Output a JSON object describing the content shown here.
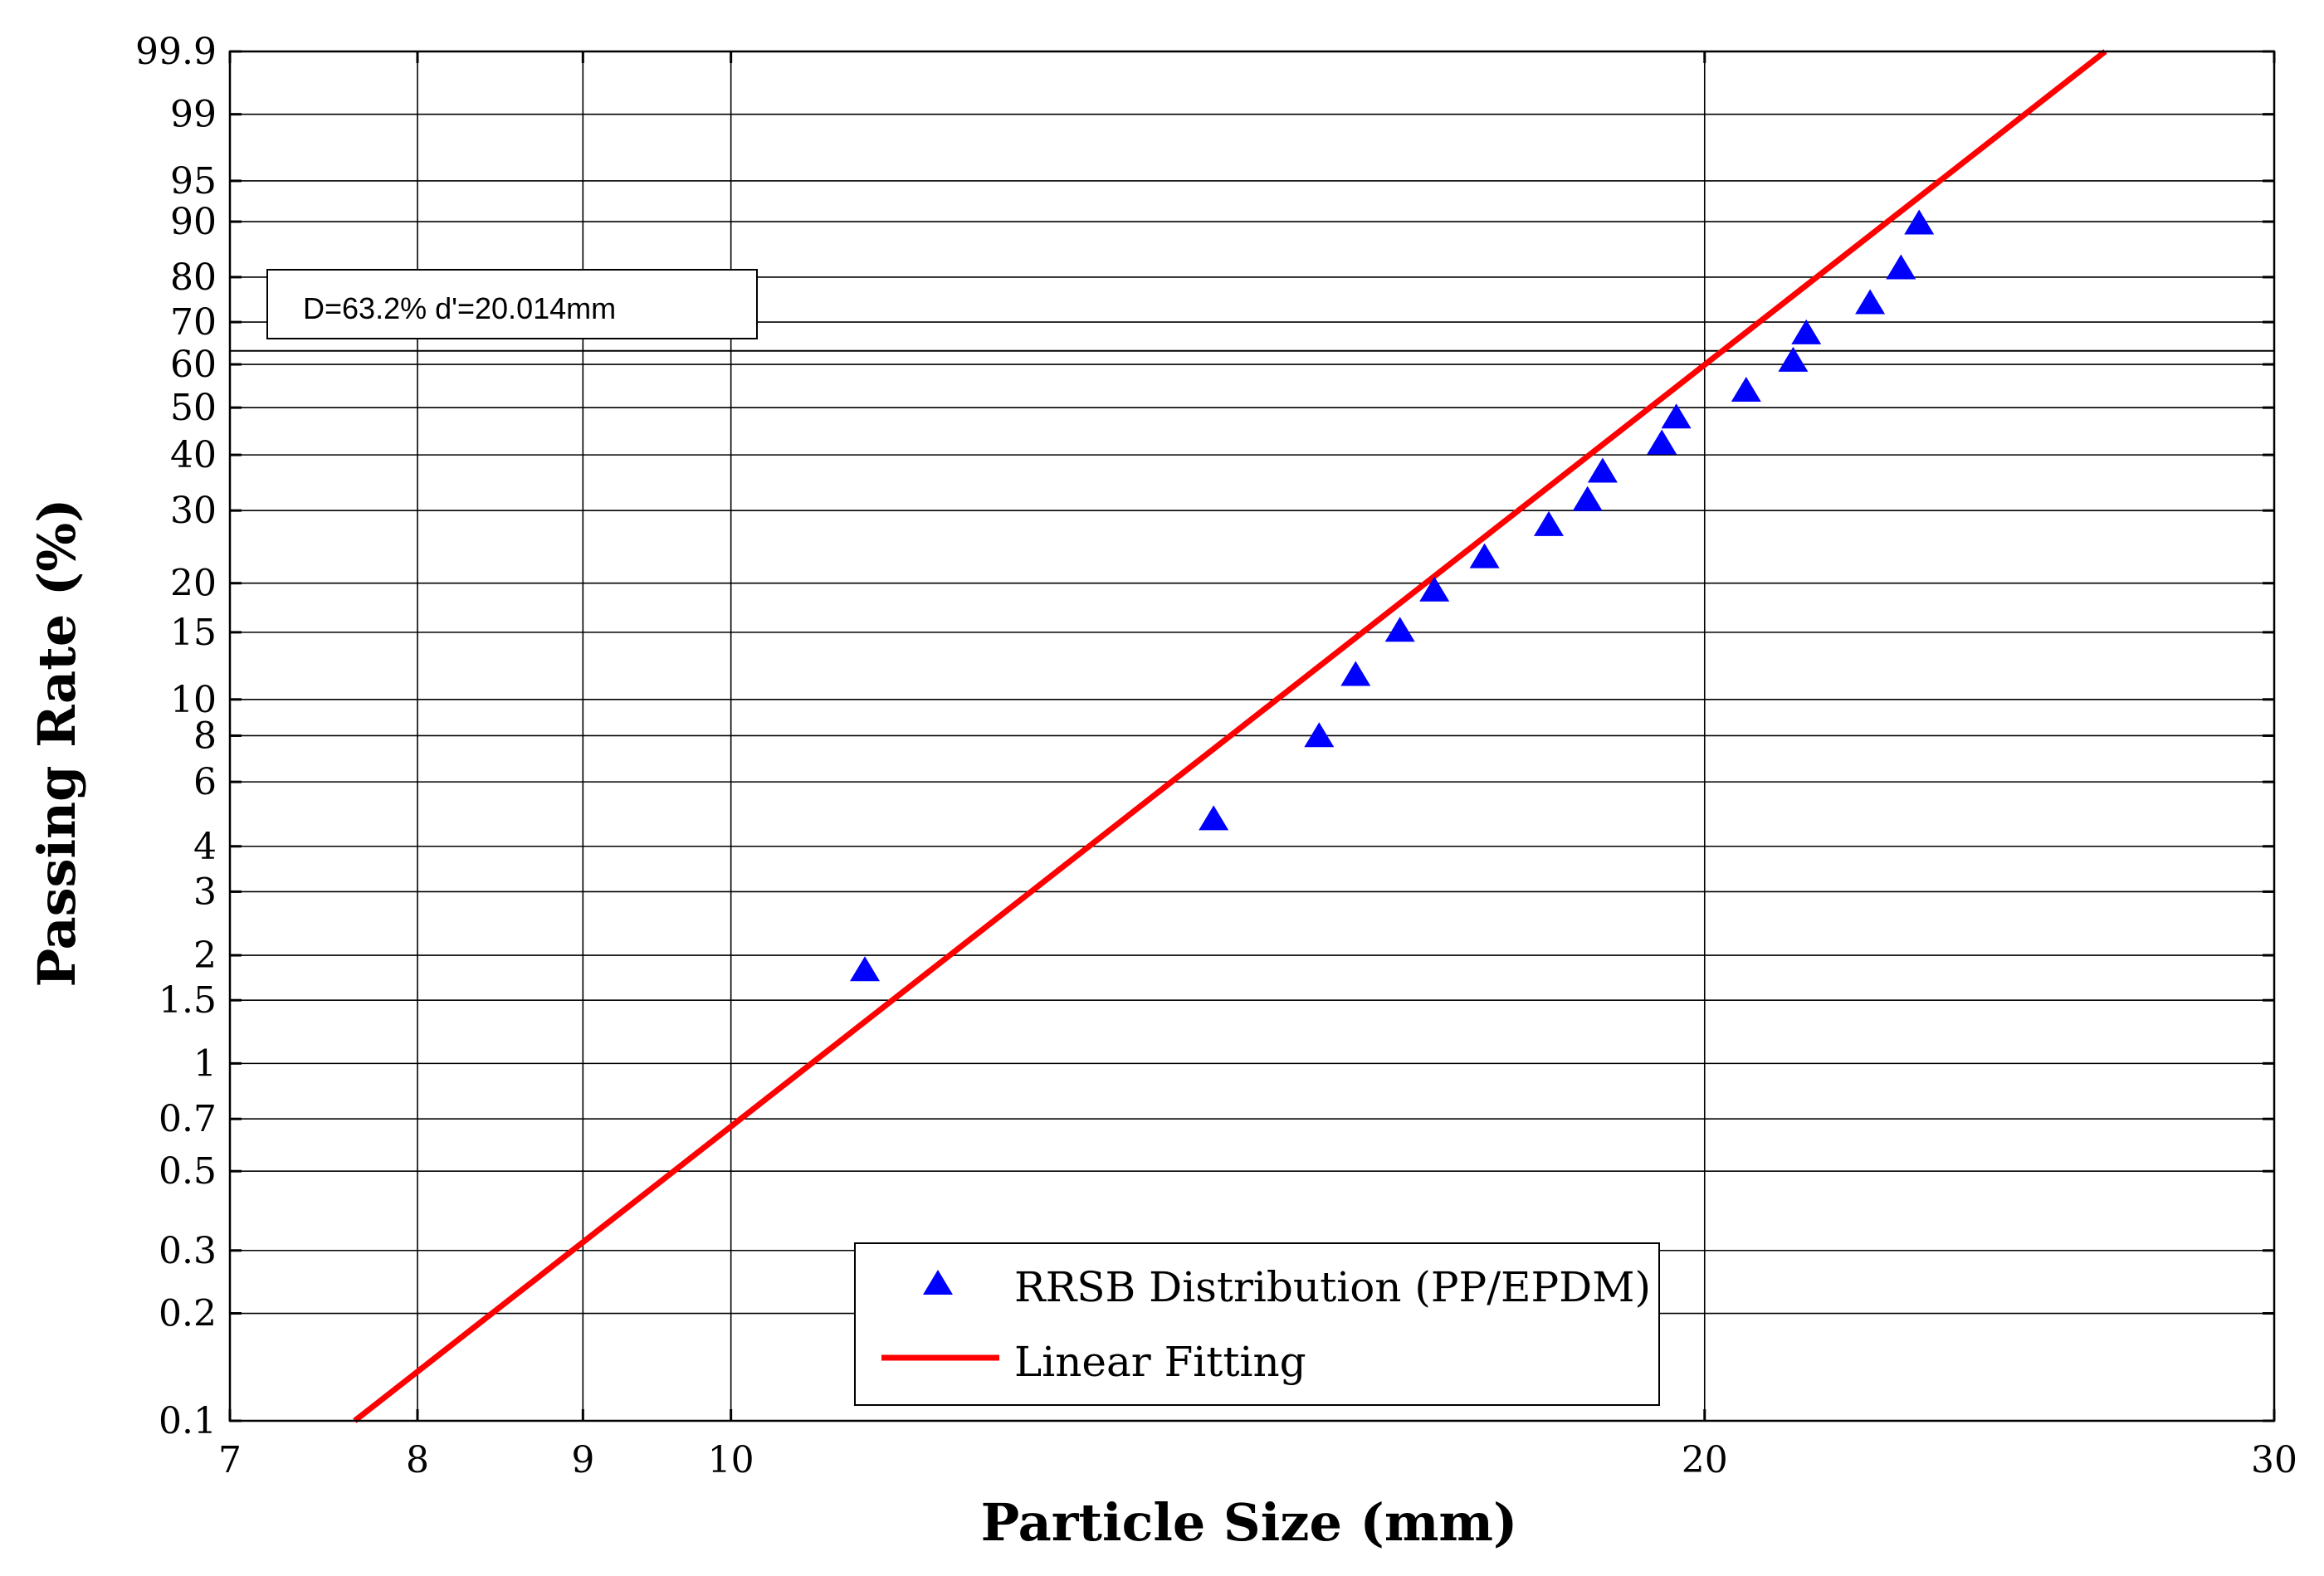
{
  "chart_data": {
    "type": "scatter",
    "title": "",
    "xlabel": "Particle Size (mm)",
    "ylabel": "Passing Rate (%)",
    "x_scale": "log",
    "y_scale": "rosin-rammler",
    "xlim": [
      7,
      30
    ],
    "ylim": [
      0.1,
      99.9
    ],
    "x_ticks": [
      7,
      8,
      9,
      10,
      20,
      30
    ],
    "x_tick_labels": [
      "7",
      "8",
      "9",
      "10",
      "20",
      "30"
    ],
    "y_ticks": [
      0.1,
      0.2,
      0.3,
      0.5,
      0.7,
      1,
      1.5,
      2,
      3,
      4,
      6,
      8,
      10,
      15,
      20,
      30,
      40,
      50,
      60,
      70,
      80,
      90,
      95,
      99,
      99.9
    ],
    "y_tick_labels": [
      "0.1",
      "0.2",
      "0.3",
      "0.5",
      "0.7",
      "1",
      "1.5",
      "2",
      "3",
      "4",
      "6",
      "8",
      "10",
      "15",
      "20",
      "30",
      "40",
      "50",
      "60",
      "70",
      "80",
      "90",
      "95",
      "99",
      "99.9"
    ],
    "grid": true,
    "series": [
      {
        "name": "RRSB Distribution (PP/EPDM)",
        "kind": "scatter",
        "marker": "triangle",
        "color": "#0000ff",
        "x": [
          11.0,
          14.1,
          15.2,
          15.6,
          16.1,
          16.5,
          17.1,
          17.9,
          18.4,
          18.6,
          19.4,
          19.6,
          20.6,
          21.3,
          21.5,
          22.5,
          23.0,
          23.3
        ],
        "y": [
          1.8,
          4.7,
          7.9,
          11.5,
          15,
          19,
          23,
          27.5,
          31.5,
          36.5,
          42,
          47.5,
          53.5,
          60.5,
          67,
          74,
          81.5,
          89.5
        ]
      },
      {
        "name": "Linear Fitting",
        "kind": "line",
        "color": "#ff0000",
        "x": [
          7.65,
          26.6
        ],
        "y": [
          0.1,
          99.9
        ]
      }
    ],
    "reference_line": {
      "y": 63.2,
      "color": "#000000"
    },
    "annotation": "D=63.2%   d'=20.014mm",
    "legend_position": "bottom-center"
  }
}
